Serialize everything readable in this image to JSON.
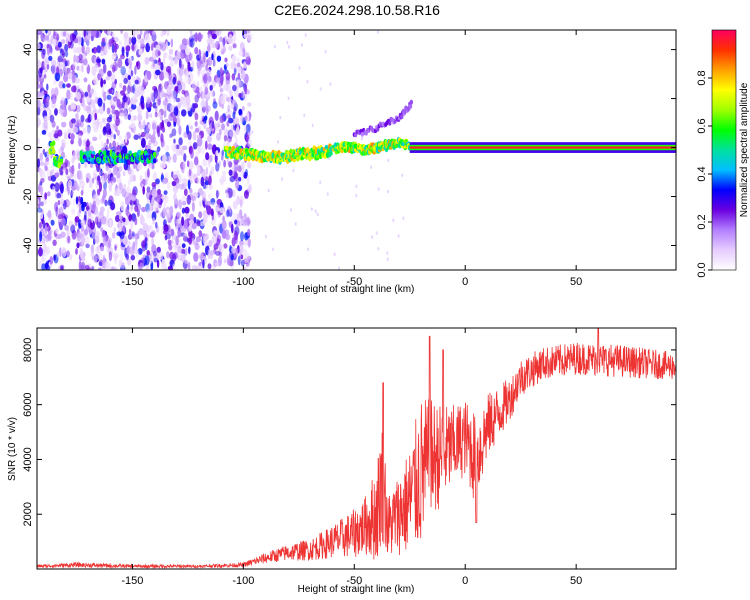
{
  "figure": {
    "title": "C2E6.2024.298.10.58.R16"
  },
  "chart_data": [
    {
      "type": "heatmap",
      "title": "C2E6.2024.298.10.58.R16",
      "xlabel": "Height of straight line (km)",
      "ylabel": "Frequency (Hz)",
      "xlim": [
        -193,
        95
      ],
      "ylim": [
        -50,
        48
      ],
      "xticks": [
        -150,
        -100,
        -50,
        0,
        50
      ],
      "yticks": [
        -40,
        -20,
        0,
        20,
        40
      ],
      "colorbar": {
        "label": "Normalized spectral amplitude",
        "range": [
          0,
          1
        ],
        "ticks": [
          0.0,
          0.2,
          0.4,
          0.6,
          0.8
        ],
        "colormap": [
          "#ffffff",
          "#e6ccff",
          "#b380ff",
          "#6a00e0",
          "#0000ff",
          "#00bfff",
          "#00e0a0",
          "#00ff00",
          "#a0ff00",
          "#ffff00",
          "#ffa000",
          "#ff3000",
          "#ff0060"
        ]
      },
      "features": {
        "noise_region_x": [
          -193,
          -97
        ],
        "spectral_line_centroid_hz": [
          {
            "x": -185,
            "y": -6
          },
          {
            "x": -170,
            "y": -4
          },
          {
            "x": -160,
            "y": -4
          },
          {
            "x": -150,
            "y": -4
          },
          {
            "x": -105,
            "y": -2
          },
          {
            "x": -95,
            "y": -3
          },
          {
            "x": -85,
            "y": -4
          },
          {
            "x": -75,
            "y": -3
          },
          {
            "x": -65,
            "y": -2
          },
          {
            "x": -55,
            "y": 0
          },
          {
            "x": -50,
            "y": 0
          },
          {
            "x": -45,
            "y": -1
          },
          {
            "x": -40,
            "y": 0
          },
          {
            "x": -35,
            "y": 1
          },
          {
            "x": -30,
            "y": 2
          },
          {
            "x": -25,
            "y": 1
          },
          {
            "x": 0,
            "y": 0
          },
          {
            "x": 50,
            "y": 0
          },
          {
            "x": 95,
            "y": 0
          }
        ],
        "upper_branch_hz": [
          {
            "x": -50,
            "y": 5
          },
          {
            "x": -40,
            "y": 8
          },
          {
            "x": -30,
            "y": 12
          },
          {
            "x": -24,
            "y": 18
          }
        ]
      }
    },
    {
      "type": "line",
      "xlabel": "Height of straight line (km)",
      "ylabel": "SNR (10 * v/v)",
      "xlim": [
        -193,
        95
      ],
      "ylim": [
        0,
        8800
      ],
      "xticks": [
        -150,
        -100,
        -50,
        0,
        50
      ],
      "yticks": [
        2000,
        4000,
        6000,
        8000
      ],
      "color": "#ee3333",
      "envelope": [
        {
          "x": -193,
          "mean": 100,
          "spread": 50
        },
        {
          "x": -175,
          "mean": 150,
          "spread": 90
        },
        {
          "x": -150,
          "mean": 100,
          "spread": 60
        },
        {
          "x": -120,
          "mean": 100,
          "spread": 50
        },
        {
          "x": -100,
          "mean": 150,
          "spread": 80
        },
        {
          "x": -90,
          "mean": 400,
          "spread": 200
        },
        {
          "x": -80,
          "mean": 600,
          "spread": 300
        },
        {
          "x": -70,
          "mean": 700,
          "spread": 400
        },
        {
          "x": -60,
          "mean": 1000,
          "spread": 600
        },
        {
          "x": -50,
          "mean": 1300,
          "spread": 900
        },
        {
          "x": -45,
          "mean": 1600,
          "spread": 1100
        },
        {
          "x": -40,
          "mean": 2000,
          "spread": 1800
        },
        {
          "x": -37,
          "mean": 3500,
          "spread": 2500
        },
        {
          "x": -35,
          "mean": 1500,
          "spread": 1200
        },
        {
          "x": -30,
          "mean": 2000,
          "spread": 1500
        },
        {
          "x": -25,
          "mean": 2500,
          "spread": 2000
        },
        {
          "x": -20,
          "mean": 3500,
          "spread": 2800
        },
        {
          "x": -15,
          "mean": 4000,
          "spread": 2200
        },
        {
          "x": -10,
          "mean": 4200,
          "spread": 1800
        },
        {
          "x": -5,
          "mean": 4500,
          "spread": 1500
        },
        {
          "x": 0,
          "mean": 4800,
          "spread": 1400
        },
        {
          "x": 5,
          "mean": 4000,
          "spread": 1800
        },
        {
          "x": 10,
          "mean": 5200,
          "spread": 1200
        },
        {
          "x": 20,
          "mean": 6200,
          "spread": 800
        },
        {
          "x": 25,
          "mean": 7000,
          "spread": 700
        },
        {
          "x": 35,
          "mean": 7500,
          "spread": 600
        },
        {
          "x": 50,
          "mean": 7700,
          "spread": 600
        },
        {
          "x": 70,
          "mean": 7600,
          "spread": 600
        },
        {
          "x": 95,
          "mean": 7400,
          "spread": 500
        }
      ],
      "peaks": [
        {
          "x": -37,
          "y": 6800
        },
        {
          "x": -16,
          "y": 8500
        },
        {
          "x": -10,
          "y": 8000
        },
        {
          "x": 60,
          "y": 8800
        }
      ],
      "dips": [
        {
          "x": 5,
          "y": 1700
        }
      ]
    }
  ]
}
